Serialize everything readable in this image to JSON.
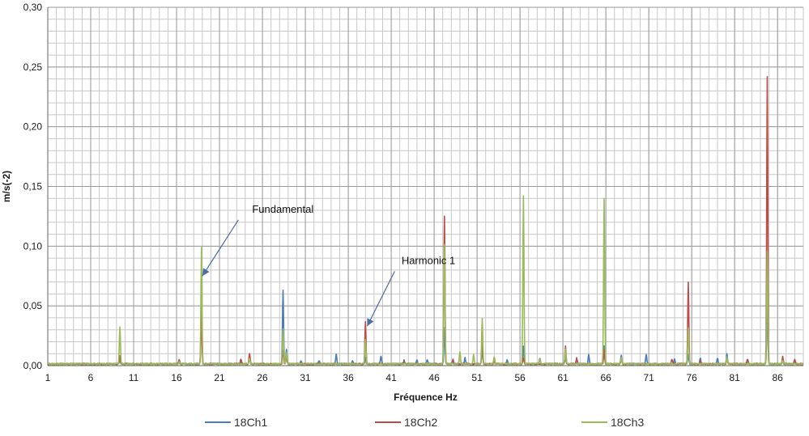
{
  "chart_data": {
    "type": "line",
    "title": "",
    "xlabel": "Fréquence Hz",
    "ylabel": "m/s(-2)",
    "xlim": [
      1,
      89
    ],
    "ylim": [
      0,
      0.3
    ],
    "x_ticks": [
      1,
      6,
      11,
      16,
      21,
      26,
      31,
      36,
      41,
      46,
      51,
      56,
      61,
      66,
      71,
      76,
      81,
      86
    ],
    "x_tick_labels": [
      "1",
      "6",
      "11",
      "16",
      "21",
      "26",
      "31",
      "36",
      "41",
      "46",
      "51",
      "56",
      "61",
      "66",
      "71",
      "76",
      "81",
      "86"
    ],
    "y_ticks": [
      0,
      0.05,
      0.1,
      0.15,
      0.2,
      0.25,
      0.3
    ],
    "y_tick_labels": [
      "0,00",
      "0,05",
      "0,10",
      "0,15",
      "0,20",
      "0,25",
      "0,30"
    ],
    "grid": true,
    "legend_position": "bottom",
    "series": [
      {
        "name": "18Ch1",
        "color": "#4a7ebb",
        "peaks": [
          [
            9.4,
            0.004
          ],
          [
            16.3,
            0.002
          ],
          [
            18.9,
            0.05
          ],
          [
            23.5,
            0.003
          ],
          [
            24.5,
            0.006
          ],
          [
            28.4,
            0.062
          ],
          [
            28.8,
            0.012
          ],
          [
            30.5,
            0.003
          ],
          [
            32.6,
            0.003
          ],
          [
            34.6,
            0.008
          ],
          [
            36.5,
            0.003
          ],
          [
            38.0,
            0.006
          ],
          [
            39.8,
            0.007
          ],
          [
            42.5,
            0.003
          ],
          [
            44.0,
            0.003
          ],
          [
            45.2,
            0.004
          ],
          [
            47.2,
            0.03
          ],
          [
            48.2,
            0.004
          ],
          [
            49.6,
            0.005
          ],
          [
            51.6,
            0.012
          ],
          [
            53.0,
            0.004
          ],
          [
            54.5,
            0.003
          ],
          [
            56.4,
            0.015
          ],
          [
            58.3,
            0.005
          ],
          [
            61.3,
            0.006
          ],
          [
            62.6,
            0.004
          ],
          [
            64.0,
            0.008
          ],
          [
            65.8,
            0.015
          ],
          [
            67.8,
            0.007
          ],
          [
            70.7,
            0.008
          ],
          [
            74.0,
            0.004
          ],
          [
            75.6,
            0.008
          ],
          [
            77.0,
            0.005
          ],
          [
            79.0,
            0.005
          ],
          [
            80.1,
            0.009
          ],
          [
            82.5,
            0.004
          ],
          [
            84.8,
            0.05
          ],
          [
            86.6,
            0.004
          ],
          [
            88.0,
            0.003
          ]
        ]
      },
      {
        "name": "18Ch2",
        "color": "#be4b48",
        "peaks": [
          [
            9.4,
            0.007
          ],
          [
            16.3,
            0.004
          ],
          [
            18.9,
            0.04
          ],
          [
            23.5,
            0.004
          ],
          [
            24.5,
            0.009
          ],
          [
            28.4,
            0.012
          ],
          [
            28.8,
            0.006
          ],
          [
            38.0,
            0.035
          ],
          [
            42.5,
            0.002
          ],
          [
            47.2,
            0.124
          ],
          [
            48.2,
            0.003
          ],
          [
            51.6,
            0.02
          ],
          [
            53.0,
            0.003
          ],
          [
            56.4,
            0.005
          ],
          [
            61.3,
            0.015
          ],
          [
            62.6,
            0.005
          ],
          [
            65.8,
            0.012
          ],
          [
            67.8,
            0.004
          ],
          [
            73.7,
            0.004
          ],
          [
            75.6,
            0.068
          ],
          [
            77.0,
            0.003
          ],
          [
            80.1,
            0.004
          ],
          [
            82.5,
            0.004
          ],
          [
            84.8,
            0.24
          ],
          [
            86.6,
            0.006
          ],
          [
            88.0,
            0.004
          ]
        ]
      },
      {
        "name": "18Ch3",
        "color": "#9bbb59",
        "peaks": [
          [
            9.4,
            0.031
          ],
          [
            16.3,
            0.002
          ],
          [
            18.9,
            0.097
          ],
          [
            24.5,
            0.004
          ],
          [
            28.4,
            0.03
          ],
          [
            28.8,
            0.01
          ],
          [
            38.0,
            0.02
          ],
          [
            47.2,
            0.1
          ],
          [
            49.0,
            0.01
          ],
          [
            50.6,
            0.008
          ],
          [
            51.6,
            0.038
          ],
          [
            53.0,
            0.006
          ],
          [
            56.4,
            0.141
          ],
          [
            58.3,
            0.004
          ],
          [
            61.3,
            0.012
          ],
          [
            65.8,
            0.138
          ],
          [
            67.8,
            0.005
          ],
          [
            75.6,
            0.03
          ],
          [
            80.1,
            0.006
          ],
          [
            84.8,
            0.094
          ],
          [
            86.6,
            0.003
          ]
        ]
      }
    ],
    "annotations": [
      {
        "text": "Fundamental",
        "text_at": [
          24.8,
          0.128
        ],
        "arrow_from": [
          23.2,
          0.122
        ],
        "arrow_to": [
          19.0,
          0.075
        ]
      },
      {
        "text": "Harmonic 1",
        "text_at": [
          42.2,
          0.085
        ],
        "arrow_from": [
          41.4,
          0.079
        ],
        "arrow_to": [
          38.2,
          0.033
        ]
      }
    ]
  }
}
